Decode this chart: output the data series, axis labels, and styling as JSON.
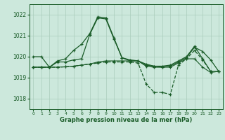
{
  "background_color": "#cce8dc",
  "grid_color": "#aaccbb",
  "line_color_dark": "#1a5c28",
  "xlabel": "Graphe pression niveau de la mer (hPa)",
  "ylim": [
    1017.5,
    1022.5
  ],
  "xlim": [
    -0.5,
    23.5
  ],
  "yticks": [
    1018,
    1019,
    1020,
    1021,
    1022
  ],
  "xticks": [
    0,
    1,
    2,
    3,
    4,
    5,
    6,
    7,
    8,
    9,
    10,
    11,
    12,
    13,
    14,
    15,
    16,
    17,
    18,
    19,
    20,
    21,
    22,
    23
  ],
  "series1_x": [
    0,
    1,
    2,
    3,
    4,
    5,
    6,
    7,
    8,
    9,
    10,
    11,
    12,
    13,
    14,
    15,
    16,
    17,
    18,
    19,
    20,
    21,
    22,
    23
  ],
  "series1_y": [
    1020.0,
    1020.0,
    1019.5,
    1019.8,
    1019.9,
    1020.3,
    1020.6,
    1021.1,
    1021.9,
    1021.85,
    1020.9,
    1019.95,
    1019.8,
    1019.8,
    1019.6,
    1019.55,
    1019.55,
    1019.6,
    1019.8,
    1020.0,
    1020.5,
    1019.9,
    1019.3,
    1019.3
  ],
  "series2_x": [
    0,
    1,
    2,
    3,
    4,
    5,
    6,
    7,
    8,
    9,
    10,
    11,
    12,
    13,
    14,
    15,
    16,
    17,
    18,
    19,
    20,
    21,
    22,
    23
  ],
  "series2_y": [
    1019.5,
    1019.5,
    1019.5,
    1019.75,
    1019.75,
    1019.85,
    1019.9,
    1021.05,
    1021.85,
    1021.8,
    1020.85,
    1019.95,
    1019.85,
    1019.8,
    1019.55,
    1019.5,
    1019.5,
    1019.55,
    1019.75,
    1019.95,
    1020.45,
    1020.25,
    1019.85,
    1019.3
  ],
  "series3_x": [
    0,
    1,
    2,
    3,
    4,
    5,
    6,
    7,
    8,
    9,
    10,
    11,
    12,
    13,
    14,
    15,
    16,
    17,
    18,
    19,
    20,
    21,
    22,
    23
  ],
  "series3_y": [
    1019.5,
    1019.5,
    1019.5,
    1019.5,
    1019.52,
    1019.55,
    1019.6,
    1019.65,
    1019.75,
    1019.8,
    1019.8,
    1019.8,
    1019.8,
    1019.8,
    1019.65,
    1019.55,
    1019.5,
    1019.5,
    1019.7,
    1019.9,
    1019.9,
    1019.5,
    1019.25,
    1019.3
  ],
  "series4_x": [
    0,
    1,
    2,
    3,
    4,
    5,
    6,
    7,
    8,
    9,
    10,
    11,
    12,
    13,
    14,
    15,
    16,
    17,
    18,
    19,
    20,
    21,
    22
  ],
  "series4_y": [
    1019.5,
    1019.5,
    1019.5,
    1019.5,
    1019.52,
    1019.55,
    1019.6,
    1019.65,
    1019.7,
    1019.75,
    1019.75,
    1019.75,
    1019.75,
    1019.7,
    1018.7,
    1018.3,
    1018.3,
    1018.2,
    1019.6,
    1019.9,
    1020.3,
    1019.85,
    1019.3
  ]
}
